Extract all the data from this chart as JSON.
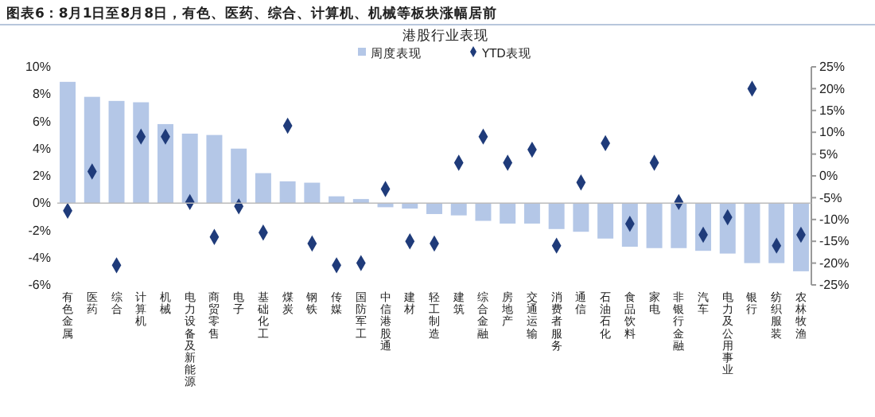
{
  "chart_data": {
    "type": "bar",
    "title": "图表6：8月1日至8月8日，有色、医药、综合、计算机、机械等板块涨幅居前",
    "subtitle": "港股行业表现",
    "categories": [
      "有色金属",
      "医药",
      "综合",
      "计算机",
      "机械",
      "电力设备及新能源",
      "商贸零售",
      "电子",
      "基础化工",
      "煤炭",
      "钢铁",
      "传媒",
      "国防军工",
      "中信港股通",
      "建材",
      "轻工制造",
      "建筑",
      "综合金融",
      "房地产",
      "交通运输",
      "消费者服务",
      "通信",
      "石油石化",
      "食品饮料",
      "家电",
      "非银行金融",
      "汽车",
      "电力及公用事业",
      "银行",
      "纺织服装",
      "农林牧渔"
    ],
    "series": [
      {
        "name": "周度表现",
        "type": "bar",
        "color": "#b4c7e7",
        "values": [
          8.9,
          7.8,
          7.5,
          7.4,
          5.8,
          5.1,
          5.0,
          4.0,
          2.2,
          1.6,
          1.5,
          0.5,
          0.3,
          -0.3,
          -0.4,
          -0.8,
          -0.9,
          -1.3,
          -1.5,
          -1.5,
          -1.9,
          -2.1,
          -2.6,
          -3.2,
          -3.3,
          -3.3,
          -3.5,
          -3.7,
          -4.4,
          -4.4,
          -5.0
        ]
      },
      {
        "name": "YTD表现",
        "type": "scatter",
        "axis": "y2",
        "marker": "diamond",
        "color": "#1f3b7a",
        "values": [
          -8,
          1,
          -20.5,
          9,
          9,
          -6,
          -14,
          -7,
          -13,
          11.5,
          -15.5,
          -20.5,
          -20,
          -3,
          -15,
          -15.5,
          3,
          9,
          3,
          6,
          -16,
          -1.5,
          7.5,
          -11,
          3,
          -6,
          -13.5,
          -9.5,
          20,
          -16,
          -13.5
        ]
      }
    ],
    "ylim": [
      -6,
      10
    ],
    "yticks": [
      {
        "value": -6,
        "label": "-6%"
      },
      {
        "value": -4,
        "label": "-4%"
      },
      {
        "value": -2,
        "label": "-2%"
      },
      {
        "value": 0,
        "label": "0%"
      },
      {
        "value": 2,
        "label": "2%"
      },
      {
        "value": 4,
        "label": "4%"
      },
      {
        "value": 6,
        "label": "6%"
      },
      {
        "value": 8,
        "label": "8%"
      },
      {
        "value": 10,
        "label": "10%"
      }
    ],
    "y2lim": [
      -25,
      25
    ],
    "y2ticks": [
      {
        "value": -25,
        "label": "-25%"
      },
      {
        "value": -20,
        "label": "-20%"
      },
      {
        "value": -15,
        "label": "-15%"
      },
      {
        "value": -10,
        "label": "-10%"
      },
      {
        "value": -5,
        "label": "-5%"
      },
      {
        "value": 0,
        "label": "0%"
      },
      {
        "value": 5,
        "label": "5%"
      },
      {
        "value": 10,
        "label": "10%"
      },
      {
        "value": 15,
        "label": "15%"
      },
      {
        "value": 20,
        "label": "20%"
      },
      {
        "value": 25,
        "label": "25%"
      }
    ],
    "legend": "top"
  }
}
